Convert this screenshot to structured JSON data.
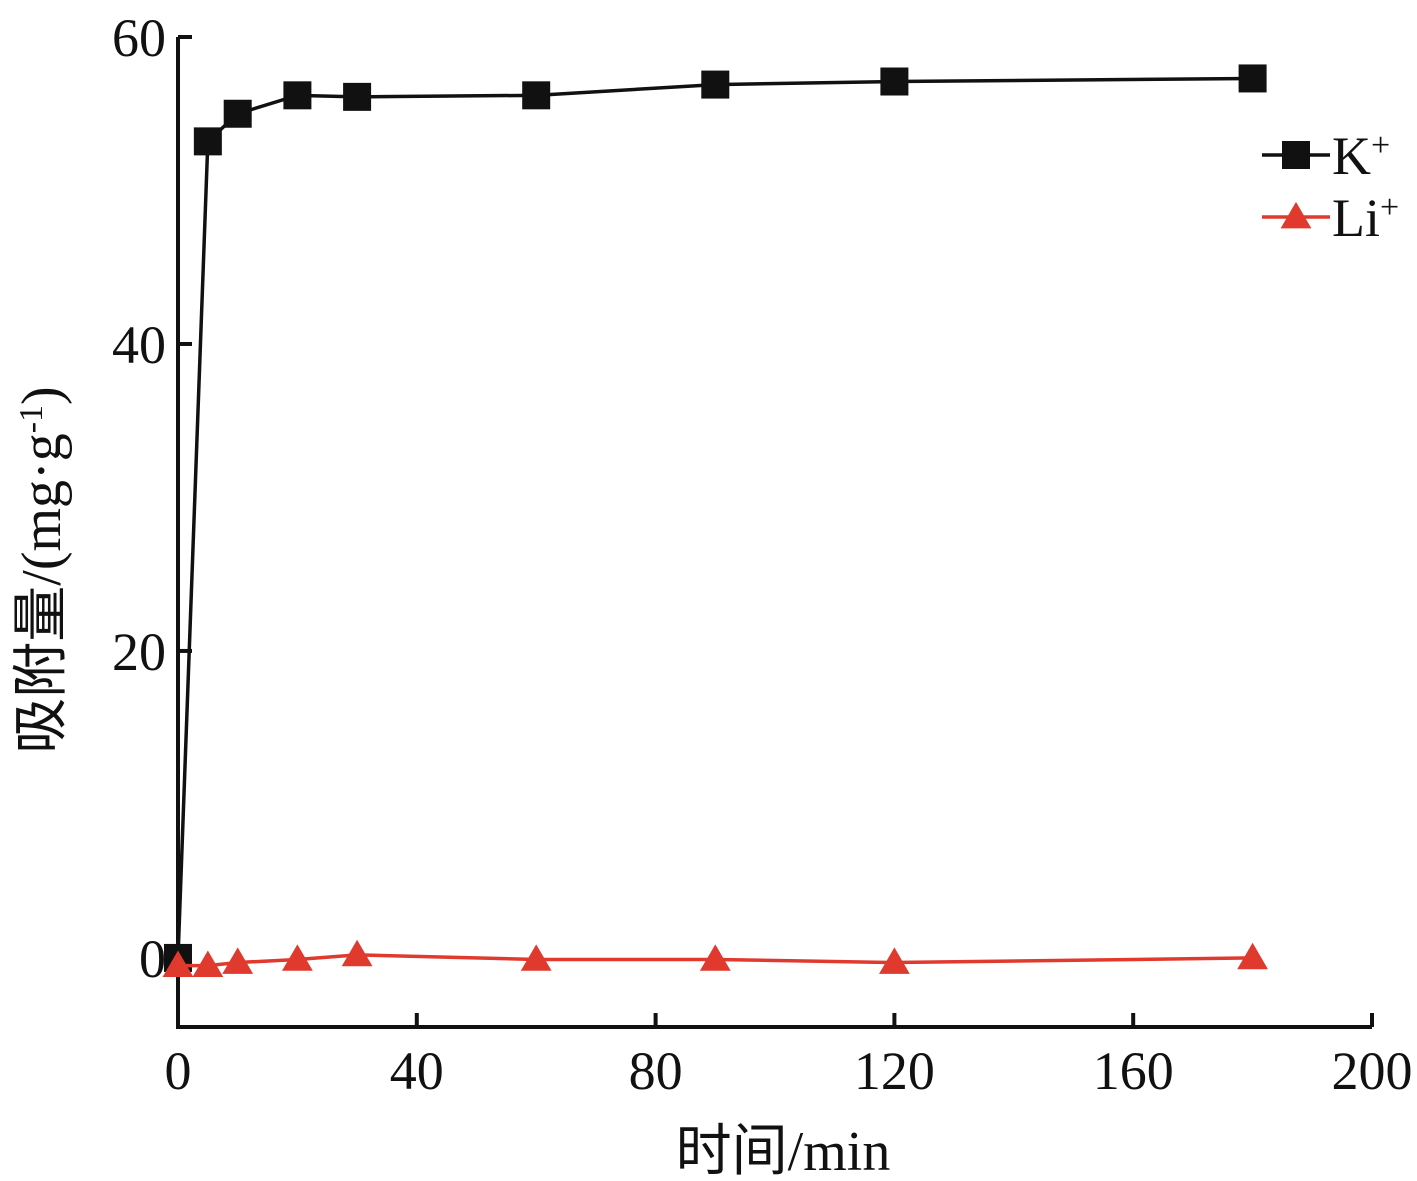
{
  "chart_data": {
    "type": "line",
    "title": "",
    "xlabel": "时间/min",
    "ylabel": "吸附量/(mg·g-1)",
    "ylabel_parts": {
      "base": "吸附量/(mg·g",
      "sup": "-1",
      "tail": ")"
    },
    "xlim": [
      0,
      200
    ],
    "ylim": [
      -4.5,
      60
    ],
    "xticks": [
      0,
      40,
      80,
      120,
      160,
      200
    ],
    "yticks": [
      0,
      20,
      40,
      60
    ],
    "grid": false,
    "legend_position": "top-right",
    "series": [
      {
        "name": "K+",
        "name_parts": {
          "base": "K",
          "sup": "+"
        },
        "color": "#111111",
        "marker": "square",
        "x": [
          0,
          5,
          10,
          20,
          30,
          60,
          90,
          120,
          180
        ],
        "y": [
          0,
          53.2,
          55.0,
          56.2,
          56.1,
          56.2,
          56.9,
          57.1,
          57.3
        ]
      },
      {
        "name": "Li+",
        "name_parts": {
          "base": "Li",
          "sup": "+"
        },
        "color": "#e03a2f",
        "marker": "triangle",
        "x": [
          0,
          5,
          10,
          20,
          30,
          60,
          90,
          120,
          180
        ],
        "y": [
          -0.5,
          -0.5,
          -0.3,
          -0.1,
          0.2,
          -0.1,
          -0.1,
          -0.3,
          0.0
        ]
      }
    ]
  }
}
